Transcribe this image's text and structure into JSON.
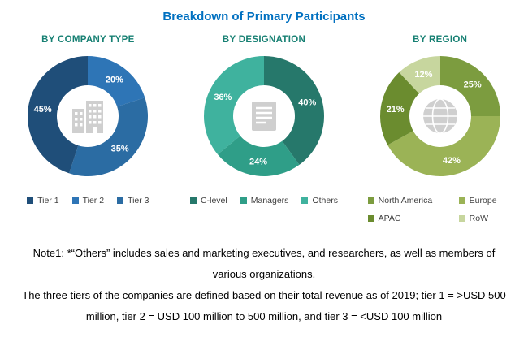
{
  "page_title": "Breakdown of Primary Participants",
  "accent_colors": {
    "title_blue": "#0070C0",
    "heading_teal": "#178073"
  },
  "chart_data": [
    {
      "type": "pie",
      "donut": true,
      "title": "BY COMPANY TYPE",
      "center_icon": "building-icon",
      "legend_position": "bottom",
      "slices": [
        {
          "label": "Tier 2",
          "value": 20,
          "text": "20%",
          "color": "#2E75B6"
        },
        {
          "label": "Tier 3",
          "value": 35,
          "text": "35%",
          "color": "#2B6CA3"
        },
        {
          "label": "Tier 1",
          "value": 45,
          "text": "45%",
          "color": "#1F4E79"
        }
      ],
      "legend": [
        {
          "label": "Tier 1",
          "color": "#1F4E79"
        },
        {
          "label": "Tier 2",
          "color": "#2E75B6"
        },
        {
          "label": "Tier 3",
          "color": "#2B6CA3"
        }
      ]
    },
    {
      "type": "pie",
      "donut": true,
      "title": "BY DESIGNATION",
      "center_icon": "document-icon",
      "legend_position": "bottom",
      "slices": [
        {
          "label": "C-level",
          "value": 40,
          "text": "40%",
          "color": "#26786B"
        },
        {
          "label": "Managers",
          "value": 24,
          "text": "24%",
          "color": "#2F9E88"
        },
        {
          "label": "Others",
          "value": 36,
          "text": "36%",
          "color": "#3FB29E"
        }
      ],
      "legend": [
        {
          "label": "C-level",
          "color": "#26786B"
        },
        {
          "label": "Managers",
          "color": "#2F9E88"
        },
        {
          "label": "Others",
          "color": "#3FB29E"
        }
      ]
    },
    {
      "type": "pie",
      "donut": true,
      "title": "BY REGION",
      "center_icon": "globe-icon",
      "legend_position": "bottom",
      "slices": [
        {
          "label": "North America",
          "value": 25,
          "text": "25%",
          "color": "#7C9C3F"
        },
        {
          "label": "Europe",
          "value": 42,
          "text": "42%",
          "color": "#9BB356"
        },
        {
          "label": "APAC",
          "value": 21,
          "text": "21%",
          "color": "#6B8C2F"
        },
        {
          "label": "RoW",
          "value": 12,
          "text": "12%",
          "color": "#C7D69E"
        }
      ],
      "legend": [
        {
          "label": "North America",
          "color": "#7C9C3F"
        },
        {
          "label": "Europe",
          "color": "#9BB356"
        },
        {
          "label": "APAC",
          "color": "#6B8C2F"
        },
        {
          "label": "RoW",
          "color": "#C7D69E"
        }
      ]
    }
  ],
  "notes": {
    "lines": [
      "Note1: *“Others” includes sales and marketing executives, and researchers, as well as members of",
      "various organizations.",
      "The three tiers of the companies are defined based on their total revenue as of 2019; tier 1 = >USD 500",
      "million, tier 2 = USD 100 million to 500 million, and tier 3 = <USD 100 million"
    ]
  }
}
